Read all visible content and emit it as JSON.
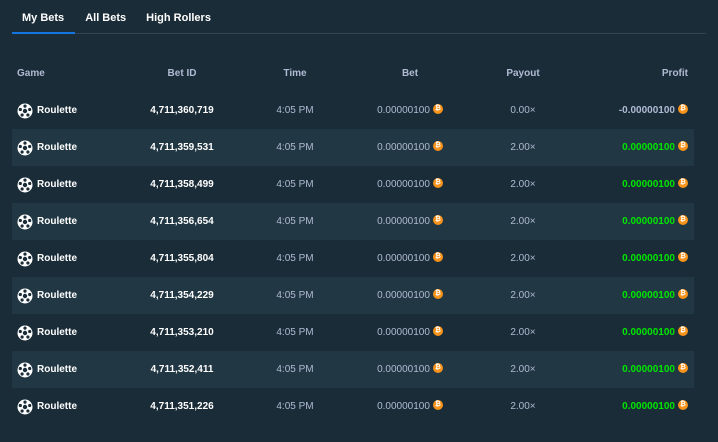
{
  "tabs": [
    {
      "label": "My Bets",
      "active": true
    },
    {
      "label": "All Bets",
      "active": false
    },
    {
      "label": "High Rollers",
      "active": false
    }
  ],
  "table": {
    "headers": {
      "game": "Game",
      "bet_id": "Bet ID",
      "time": "Time",
      "bet": "Bet",
      "payout": "Payout",
      "profit": "Profit"
    },
    "rows": [
      {
        "game": "Roulette",
        "bet_id": "4,711,360,719",
        "time": "4:05 PM",
        "bet": "0.00000100",
        "payout": "0.00×",
        "profit": "-0.00000100",
        "win": false
      },
      {
        "game": "Roulette",
        "bet_id": "4,711,359,531",
        "time": "4:05 PM",
        "bet": "0.00000100",
        "payout": "2.00×",
        "profit": "0.00000100",
        "win": true
      },
      {
        "game": "Roulette",
        "bet_id": "4,711,358,499",
        "time": "4:05 PM",
        "bet": "0.00000100",
        "payout": "2.00×",
        "profit": "0.00000100",
        "win": true
      },
      {
        "game": "Roulette",
        "bet_id": "4,711,356,654",
        "time": "4:05 PM",
        "bet": "0.00000100",
        "payout": "2.00×",
        "profit": "0.00000100",
        "win": true
      },
      {
        "game": "Roulette",
        "bet_id": "4,711,355,804",
        "time": "4:05 PM",
        "bet": "0.00000100",
        "payout": "2.00×",
        "profit": "0.00000100",
        "win": true
      },
      {
        "game": "Roulette",
        "bet_id": "4,711,354,229",
        "time": "4:05 PM",
        "bet": "0.00000100",
        "payout": "2.00×",
        "profit": "0.00000100",
        "win": true
      },
      {
        "game": "Roulette",
        "bet_id": "4,711,353,210",
        "time": "4:05 PM",
        "bet": "0.00000100",
        "payout": "2.00×",
        "profit": "0.00000100",
        "win": true
      },
      {
        "game": "Roulette",
        "bet_id": "4,711,352,411",
        "time": "4:05 PM",
        "bet": "0.00000100",
        "payout": "2.00×",
        "profit": "0.00000100",
        "win": true
      },
      {
        "game": "Roulette",
        "bet_id": "4,711,351,226",
        "time": "4:05 PM",
        "bet": "0.00000100",
        "payout": "2.00×",
        "profit": "0.00000100",
        "win": true
      }
    ]
  },
  "icons": {
    "game": "roulette-icon",
    "currency": "bitcoin-icon"
  },
  "colors": {
    "background": "#1a2c38",
    "row_alt": "#213743",
    "tab_active_underline": "#1475e1",
    "profit_positive": "#00e701",
    "bitcoin": "#f7931a"
  }
}
